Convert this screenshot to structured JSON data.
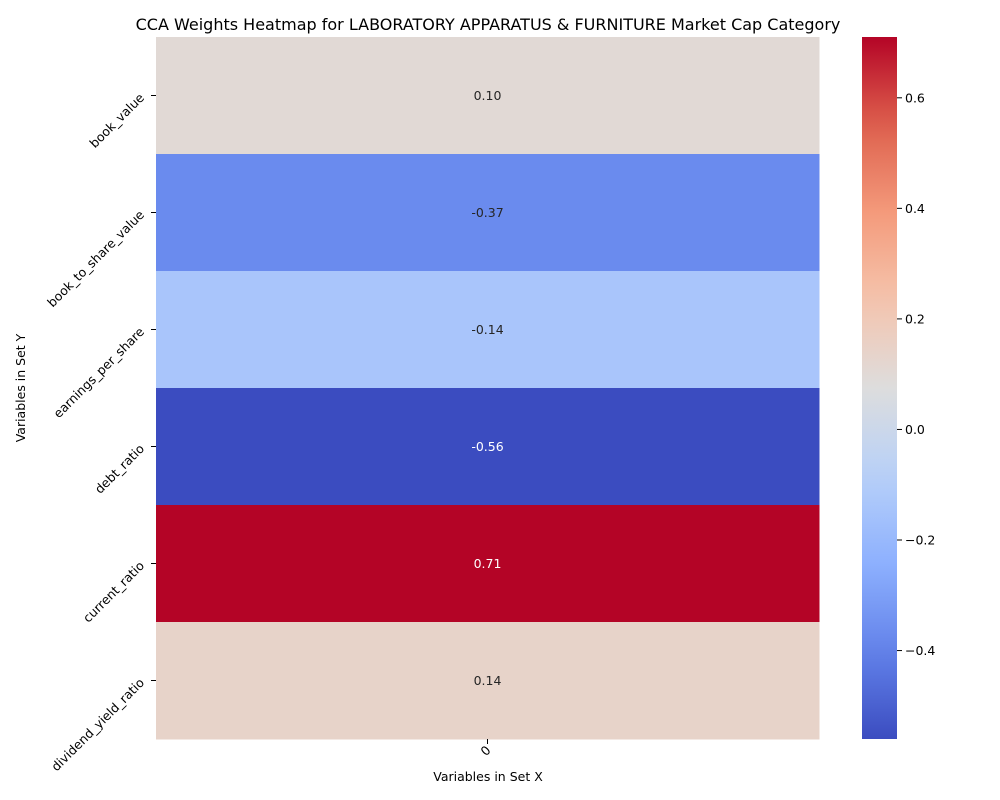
{
  "chart_data": {
    "type": "heatmap",
    "title": "CCA Weights Heatmap for LABORATORY APPARATUS & FURNITURE Market Cap Category",
    "xlabel": "Variables in Set X",
    "ylabel": "Variables in Set Y",
    "x_categories": [
      "0"
    ],
    "y_categories": [
      "book_value",
      "book_to_share_value",
      "earnings_per_share",
      "debt_ratio",
      "current_ratio",
      "dividend_yield_ratio"
    ],
    "values": [
      [
        0.1
      ],
      [
        -0.37
      ],
      [
        -0.14
      ],
      [
        -0.56
      ],
      [
        0.71
      ],
      [
        0.14
      ]
    ],
    "labels": [
      "0.10",
      "-0.37",
      "-0.14",
      "-0.56",
      "0.71",
      "0.14"
    ],
    "colormap": "coolwarm",
    "vmin": -0.56,
    "vmax": 0.71,
    "colorbar_ticks": [
      {
        "value": 0.6,
        "label": "0.6"
      },
      {
        "value": 0.4,
        "label": "0.4"
      },
      {
        "value": 0.2,
        "label": "0.2"
      },
      {
        "value": 0.0,
        "label": "0.0"
      },
      {
        "value": -0.2,
        "label": "−0.2"
      },
      {
        "value": -0.4,
        "label": "−0.4"
      }
    ]
  },
  "colors": {
    "text_dark": "#262626",
    "text_light": "#ffffff",
    "axis": "#000000"
  }
}
